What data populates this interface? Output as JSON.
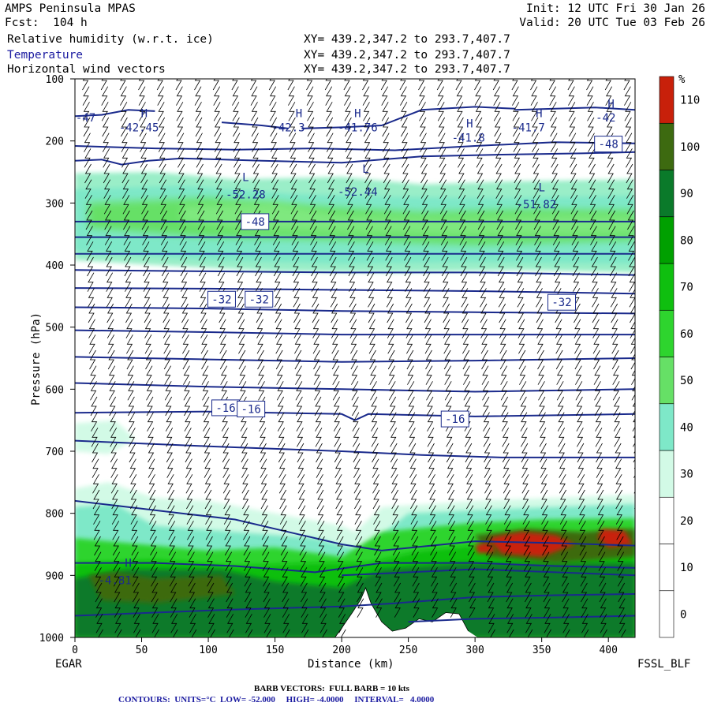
{
  "header": {
    "left": [
      "AMPS Peninsula MPAS",
      "Fcst:  104 h"
    ],
    "right": [
      "Init: 12 UTC Fri 30 Jan 26",
      "Valid: 20 UTC Tue 03 Feb 26"
    ],
    "fields": [
      {
        "name": "Relative humidity (w.r.t. ice)",
        "xy": "XY= 439.2,347.2 to 293.7,407.7"
      },
      {
        "name": "Temperature",
        "xy": "XY= 439.2,347.2 to 293.7,407.7"
      },
      {
        "name": "Horizontal wind vectors",
        "xy": "XY= 439.2,347.2 to 293.7,407.7"
      }
    ]
  },
  "axes": {
    "ylabel": "Pressure (hPa)",
    "xlabel": "Distance (km)",
    "left_end": "EGAR",
    "right_end": "FSSL_BLF"
  },
  "footer": {
    "barb": "BARB VECTORS:  FULL BARB = 10 kts",
    "contours": "CONTOURS:  UNITS=°C  LOW= -52.000     HIGH= -4.0000     INTERVAL=   4.0000"
  },
  "colors": {
    "contour": "#1a2a8c",
    "rh_scale": [
      "#ffffff",
      "#ffffff",
      "#ffffff",
      "#d2fae6",
      "#7ee8c8",
      "#66e066",
      "#2ed42e",
      "#0fbf0f",
      "#00a000",
      "#0a7a2a",
      "#3d6a10",
      "#c8200a"
    ]
  },
  "chart_data": {
    "type": "heatmap",
    "title": "",
    "xlabel": "Distance (km)",
    "ylabel": "Pressure (hPa)",
    "xlim": [
      0,
      420
    ],
    "ylim": [
      1000,
      100
    ],
    "x_ticks": [
      0,
      50,
      100,
      150,
      200,
      250,
      300,
      350,
      400
    ],
    "y_ticks": [
      100,
      200,
      300,
      400,
      500,
      600,
      700,
      800,
      900,
      1000
    ],
    "colorbar": {
      "unit": "%",
      "levels": [
        0,
        10,
        20,
        30,
        40,
        50,
        60,
        70,
        80,
        90,
        100,
        110
      ]
    },
    "contours": {
      "units": "°C",
      "low": -52.0,
      "high": -4.0,
      "interval": 4.0,
      "labels": [
        {
          "text": "-48",
          "x": 400,
          "p": 205,
          "boxed": true
        },
        {
          "text": "-48",
          "x": 135,
          "p": 330,
          "boxed": true
        },
        {
          "text": "-32",
          "x": 110,
          "p": 455,
          "boxed": true
        },
        {
          "text": "-32",
          "x": 138,
          "p": 455,
          "boxed": true
        },
        {
          "text": "-32",
          "x": 365,
          "p": 460,
          "boxed": true
        },
        {
          "text": "-16",
          "x": 113,
          "p": 630,
          "boxed": true
        },
        {
          "text": "-16",
          "x": 132,
          "p": 632,
          "boxed": true
        },
        {
          "text": "-16",
          "x": 285,
          "p": 648,
          "boxed": true
        },
        {
          "text": "-47",
          "x": 8,
          "p": 162,
          "boxed": false
        },
        {
          "text": "-42.45",
          "x": 48,
          "p": 178,
          "boxed": false
        },
        {
          "text": "-42.3",
          "x": 160,
          "p": 178,
          "boxed": false
        },
        {
          "text": "-41.76",
          "x": 212,
          "p": 178,
          "boxed": false
        },
        {
          "text": "-41.8",
          "x": 295,
          "p": 195,
          "boxed": false
        },
        {
          "text": "-41.7",
          "x": 340,
          "p": 178,
          "boxed": false
        },
        {
          "text": "-42",
          "x": 398,
          "p": 162,
          "boxed": false
        },
        {
          "text": "-52.28",
          "x": 128,
          "p": 286,
          "boxed": false
        },
        {
          "text": "-52.44",
          "x": 212,
          "p": 282,
          "boxed": false
        },
        {
          "text": "-51.82",
          "x": 346,
          "p": 302,
          "boxed": false
        },
        {
          "text": "-4.81",
          "x": 30,
          "p": 908,
          "boxed": false
        }
      ],
      "extrema": [
        {
          "mark": "H",
          "x": 52,
          "p": 155
        },
        {
          "mark": "H",
          "x": 168,
          "p": 155
        },
        {
          "mark": "H",
          "x": 212,
          "p": 155
        },
        {
          "mark": "H",
          "x": 296,
          "p": 172
        },
        {
          "mark": "H",
          "x": 348,
          "p": 155
        },
        {
          "mark": "H",
          "x": 402,
          "p": 140
        },
        {
          "mark": "L",
          "x": 128,
          "p": 258
        },
        {
          "mark": "L",
          "x": 218,
          "p": 245
        },
        {
          "mark": "L",
          "x": 350,
          "p": 275
        },
        {
          "mark": "H",
          "x": 40,
          "p": 880
        }
      ]
    }
  }
}
